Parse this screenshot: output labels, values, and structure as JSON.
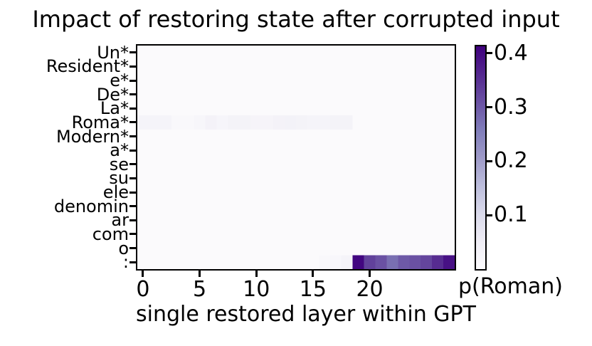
{
  "chart_data": {
    "type": "heatmap",
    "title": "Impact of restoring state after corrupted input",
    "xlabel": "single restored layer within GPT",
    "colorbar_label": "p(Roman)",
    "rows": [
      "Un*",
      "Resident*",
      "e*",
      "De*",
      "La*",
      "Roma*",
      "Modern*",
      "a*",
      "se",
      "su",
      "ele",
      "denomin",
      "ar",
      "com",
      "o",
      ":"
    ],
    "n_layers": 28,
    "xticks": [
      0,
      5,
      10,
      15,
      20
    ],
    "xlim": [
      0,
      27
    ],
    "colorbar_ticks": [
      "0.1",
      "0.2",
      "0.3",
      "0.4"
    ],
    "colorbar_tick_values": [
      0.1,
      0.2,
      0.3,
      0.4
    ],
    "vmax": 0.413,
    "vmin": 0,
    "colormap": "Purples",
    "colormap_stops": [
      "#fcfbfd",
      "#efedf5",
      "#dadaeb",
      "#bcbddc",
      "#9e9ac8",
      "#807dba",
      "#6a51a3",
      "#54278f",
      "#3f007d"
    ],
    "grid": false,
    "legend_position": "colorbar-right",
    "values": [
      [
        0.004,
        0.004,
        0.004,
        0.004,
        0.004,
        0.004,
        0.004,
        0.004,
        0.004,
        0.004,
        0.004,
        0.004,
        0.004,
        0.004,
        0.004,
        0.004,
        0.004,
        0.004,
        0.004,
        0.004,
        0.004,
        0.004,
        0.004,
        0.004,
        0.004,
        0.004,
        0.004,
        0.004
      ],
      [
        0.004,
        0.004,
        0.004,
        0.004,
        0.004,
        0.004,
        0.004,
        0.004,
        0.004,
        0.004,
        0.004,
        0.004,
        0.004,
        0.004,
        0.004,
        0.004,
        0.004,
        0.004,
        0.004,
        0.004,
        0.004,
        0.004,
        0.004,
        0.004,
        0.004,
        0.004,
        0.004,
        0.004
      ],
      [
        0.004,
        0.004,
        0.004,
        0.004,
        0.004,
        0.004,
        0.004,
        0.004,
        0.004,
        0.004,
        0.004,
        0.004,
        0.004,
        0.004,
        0.004,
        0.004,
        0.004,
        0.004,
        0.004,
        0.004,
        0.004,
        0.004,
        0.004,
        0.004,
        0.004,
        0.004,
        0.004,
        0.004
      ],
      [
        0.004,
        0.004,
        0.004,
        0.004,
        0.004,
        0.004,
        0.004,
        0.004,
        0.004,
        0.004,
        0.004,
        0.004,
        0.004,
        0.004,
        0.004,
        0.004,
        0.004,
        0.004,
        0.004,
        0.004,
        0.004,
        0.004,
        0.004,
        0.004,
        0.004,
        0.004,
        0.004,
        0.004
      ],
      [
        0.004,
        0.004,
        0.004,
        0.004,
        0.004,
        0.004,
        0.004,
        0.004,
        0.004,
        0.004,
        0.004,
        0.004,
        0.004,
        0.004,
        0.004,
        0.004,
        0.004,
        0.004,
        0.004,
        0.004,
        0.004,
        0.004,
        0.004,
        0.004,
        0.004,
        0.004,
        0.004,
        0.004
      ],
      [
        0.027,
        0.027,
        0.027,
        0.012,
        0.01,
        0.018,
        0.032,
        0.022,
        0.03,
        0.03,
        0.025,
        0.025,
        0.032,
        0.034,
        0.03,
        0.027,
        0.027,
        0.03,
        0.03,
        0.004,
        0.004,
        0.004,
        0.004,
        0.004,
        0.004,
        0.004,
        0.004,
        0.004
      ],
      [
        0.004,
        0.004,
        0.004,
        0.004,
        0.004,
        0.004,
        0.004,
        0.004,
        0.004,
        0.004,
        0.004,
        0.004,
        0.004,
        0.004,
        0.004,
        0.004,
        0.004,
        0.004,
        0.004,
        0.004,
        0.004,
        0.004,
        0.004,
        0.004,
        0.004,
        0.004,
        0.004,
        0.004
      ],
      [
        0.004,
        0.004,
        0.004,
        0.004,
        0.004,
        0.004,
        0.004,
        0.004,
        0.004,
        0.004,
        0.004,
        0.004,
        0.004,
        0.004,
        0.004,
        0.004,
        0.004,
        0.004,
        0.004,
        0.004,
        0.004,
        0.004,
        0.004,
        0.004,
        0.004,
        0.004,
        0.004,
        0.004
      ],
      [
        0.004,
        0.004,
        0.004,
        0.004,
        0.004,
        0.004,
        0.004,
        0.004,
        0.004,
        0.004,
        0.004,
        0.004,
        0.004,
        0.004,
        0.004,
        0.004,
        0.004,
        0.004,
        0.004,
        0.004,
        0.004,
        0.004,
        0.004,
        0.004,
        0.004,
        0.004,
        0.004,
        0.004
      ],
      [
        0.004,
        0.004,
        0.004,
        0.004,
        0.004,
        0.004,
        0.004,
        0.004,
        0.004,
        0.004,
        0.004,
        0.004,
        0.004,
        0.004,
        0.004,
        0.004,
        0.004,
        0.004,
        0.004,
        0.004,
        0.004,
        0.004,
        0.004,
        0.004,
        0.004,
        0.004,
        0.004,
        0.004
      ],
      [
        0.004,
        0.004,
        0.004,
        0.004,
        0.004,
        0.004,
        0.004,
        0.004,
        0.004,
        0.004,
        0.004,
        0.004,
        0.004,
        0.004,
        0.004,
        0.004,
        0.004,
        0.004,
        0.004,
        0.004,
        0.004,
        0.004,
        0.004,
        0.004,
        0.004,
        0.004,
        0.004,
        0.004
      ],
      [
        0.004,
        0.004,
        0.004,
        0.004,
        0.004,
        0.004,
        0.004,
        0.004,
        0.004,
        0.004,
        0.004,
        0.004,
        0.004,
        0.004,
        0.004,
        0.004,
        0.004,
        0.004,
        0.004,
        0.004,
        0.004,
        0.004,
        0.004,
        0.004,
        0.004,
        0.004,
        0.004,
        0.004
      ],
      [
        0.004,
        0.004,
        0.004,
        0.004,
        0.004,
        0.004,
        0.004,
        0.004,
        0.004,
        0.004,
        0.004,
        0.004,
        0.004,
        0.004,
        0.004,
        0.004,
        0.004,
        0.004,
        0.004,
        0.004,
        0.004,
        0.004,
        0.004,
        0.004,
        0.004,
        0.004,
        0.004,
        0.004
      ],
      [
        0.004,
        0.004,
        0.004,
        0.004,
        0.004,
        0.004,
        0.004,
        0.004,
        0.004,
        0.004,
        0.004,
        0.004,
        0.004,
        0.004,
        0.004,
        0.004,
        0.004,
        0.004,
        0.004,
        0.004,
        0.004,
        0.004,
        0.004,
        0.004,
        0.004,
        0.004,
        0.004,
        0.004
      ],
      [
        0.004,
        0.004,
        0.004,
        0.004,
        0.004,
        0.004,
        0.004,
        0.004,
        0.004,
        0.004,
        0.004,
        0.004,
        0.004,
        0.004,
        0.004,
        0.004,
        0.004,
        0.004,
        0.004,
        0.004,
        0.004,
        0.004,
        0.004,
        0.004,
        0.004,
        0.004,
        0.004,
        0.004
      ],
      [
        0.004,
        0.004,
        0.004,
        0.004,
        0.004,
        0.004,
        0.004,
        0.004,
        0.004,
        0.004,
        0.004,
        0.004,
        0.004,
        0.004,
        0.004,
        0.004,
        0.01,
        0.015,
        0.026,
        0.405,
        0.33,
        0.31,
        0.275,
        0.3,
        0.31,
        0.325,
        0.355,
        0.39
      ]
    ]
  }
}
